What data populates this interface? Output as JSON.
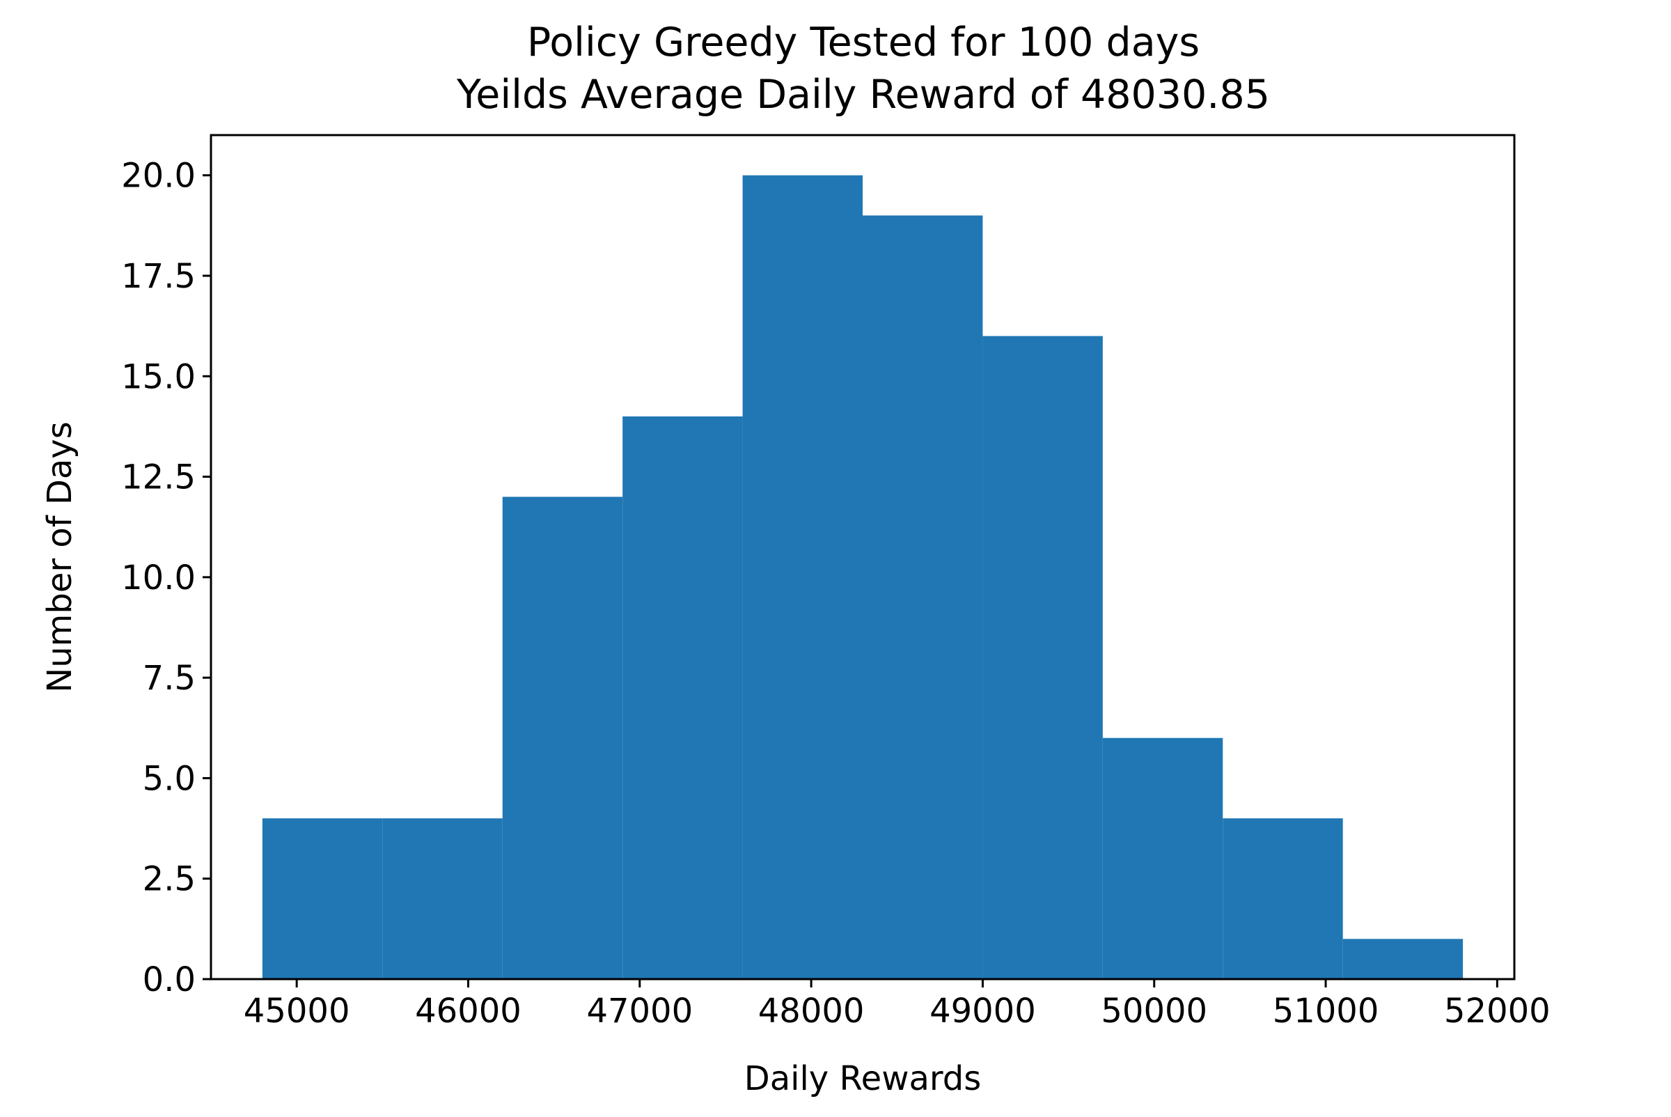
{
  "chart_data": {
    "type": "bar",
    "histogram": true,
    "title_line1": "Policy Greedy Tested for 100 days",
    "title_line2": "Yeilds Average Daily Reward of 48030.85",
    "xlabel": "Daily Rewards",
    "ylabel": "Number of Days",
    "xlim": [
      44500,
      52100
    ],
    "ylim": [
      0,
      21
    ],
    "x_ticks": [
      45000,
      46000,
      47000,
      48000,
      49000,
      50000,
      51000,
      52000
    ],
    "y_ticks": [
      0.0,
      2.5,
      5.0,
      7.5,
      10.0,
      12.5,
      15.0,
      17.5,
      20.0
    ],
    "bin_edges": [
      44800,
      45500,
      46200,
      46900,
      47600,
      48300,
      49000,
      49700,
      50400,
      51100,
      51800
    ],
    "values": [
      4,
      4,
      12,
      14,
      20,
      19,
      16,
      6,
      4,
      1
    ],
    "bar_color": "#2077b4",
    "grid": false
  }
}
